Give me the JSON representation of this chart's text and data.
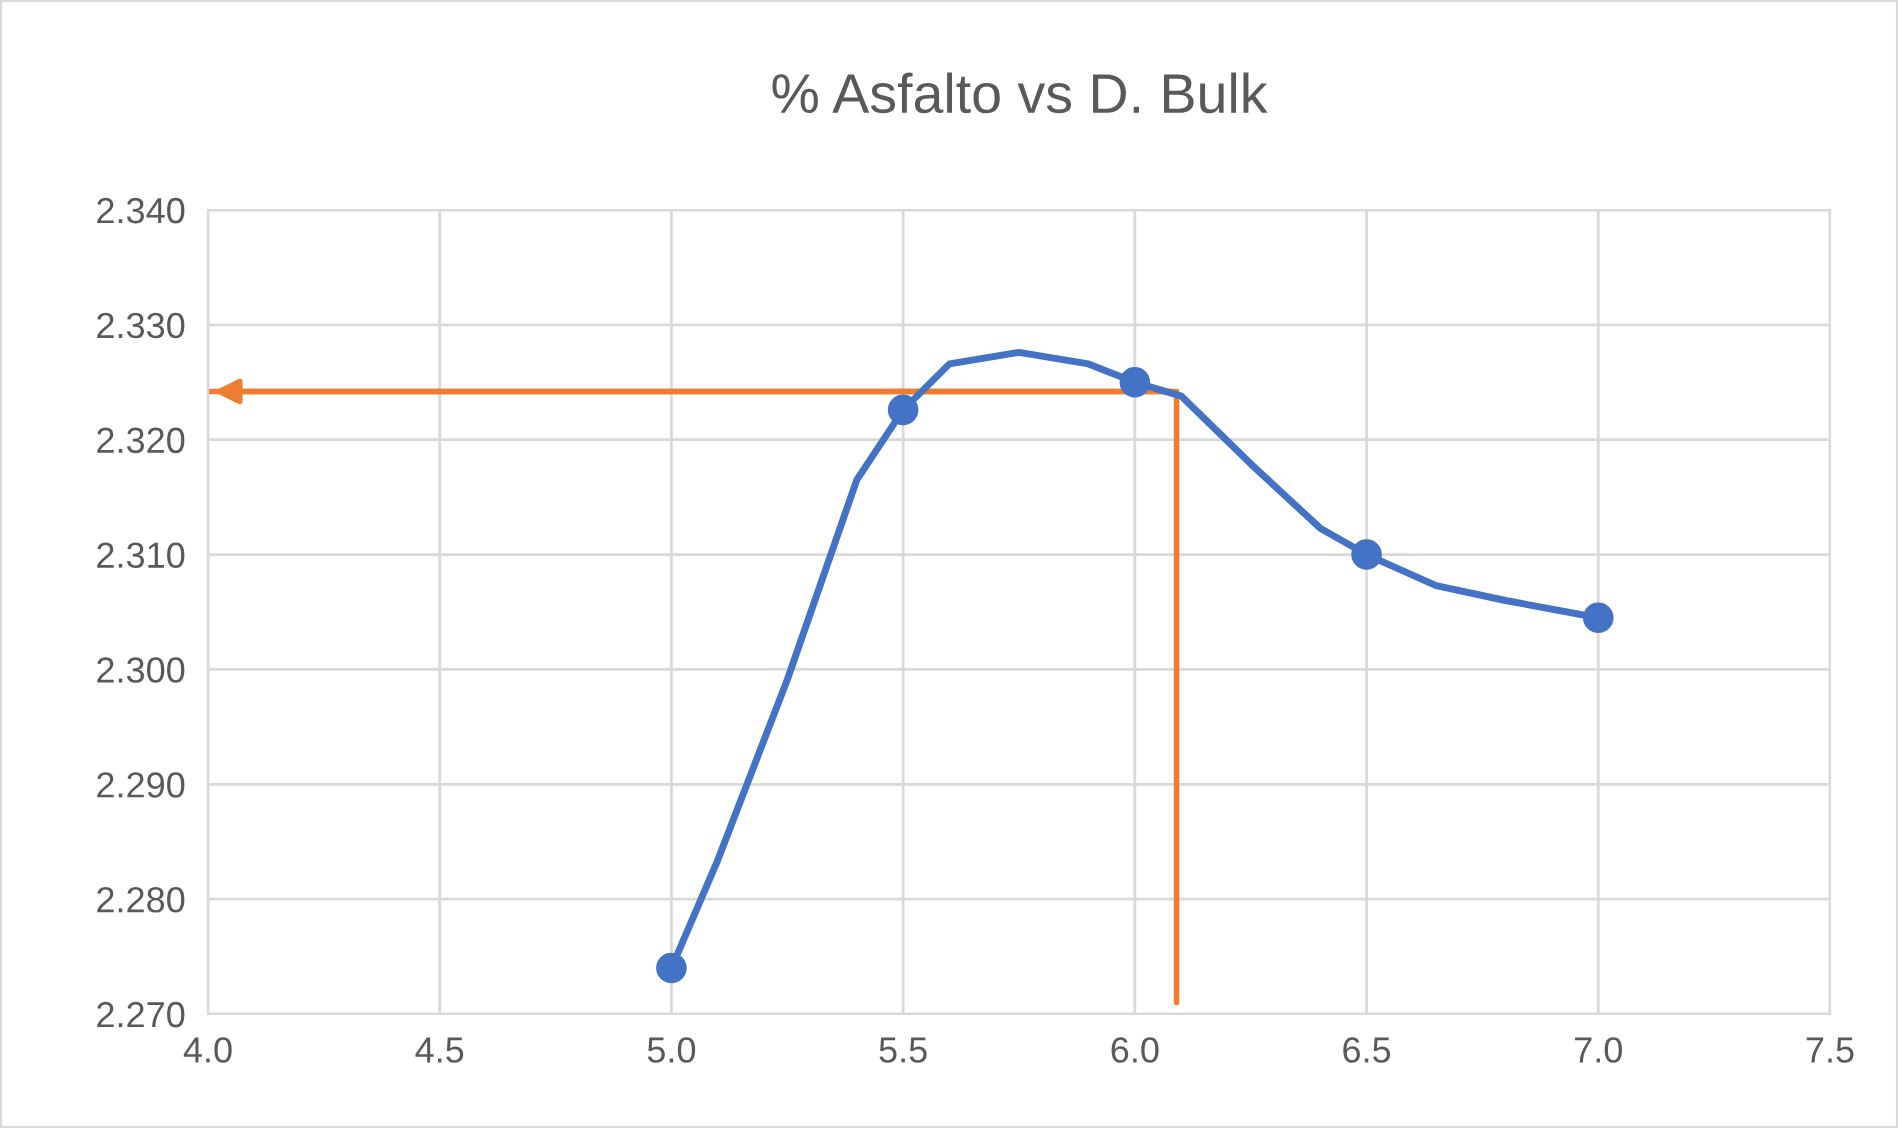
{
  "chart_data": {
    "type": "line",
    "title": "% Asfalto vs D. Bulk",
    "x": [
      5.0,
      5.1,
      5.25,
      5.4,
      5.5,
      5.6,
      5.75,
      5.9,
      6.0,
      6.1,
      6.25,
      6.4,
      6.5,
      6.65,
      6.8,
      7.0
    ],
    "series": [
      {
        "color": "#4472c4",
        "values": [
          2.274,
          2.2834,
          2.2991,
          2.3165,
          2.3226,
          2.3266,
          2.3276,
          2.3266,
          2.325,
          2.3238,
          2.3179,
          2.3123,
          2.31,
          2.3073,
          2.306,
          2.3045
        ],
        "marker": "none"
      },
      {
        "type": "scatter",
        "color": "#4472c4",
        "x": [
          5.0,
          5.5,
          6.0,
          6.5,
          7.0
        ],
        "values": [
          2.274,
          2.3226,
          2.325,
          2.31,
          2.3045
        ],
        "marker": "circle"
      },
      {
        "color": "#ed7d31",
        "x": [
          6.09,
          6.09,
          4.0
        ],
        "values": [
          2.271,
          2.3242,
          2.3242
        ],
        "marker": "none"
      }
    ],
    "xlim": [
      4.0,
      7.5
    ],
    "xticks": [
      {
        "value": 4.0,
        "label": "4.0"
      },
      {
        "value": 4.5,
        "label": "4.5"
      },
      {
        "value": 5.0,
        "label": "5.0"
      },
      {
        "value": 5.5,
        "label": "5.5"
      },
      {
        "value": 6.0,
        "label": "6.0"
      },
      {
        "value": 6.5,
        "label": "6.5"
      },
      {
        "value": 7.0,
        "label": "7.0"
      },
      {
        "value": 7.5,
        "label": "7.5"
      }
    ],
    "ylim": [
      2.27,
      2.34
    ],
    "yticks": [
      {
        "value": 2.27,
        "label": "2.270"
      },
      {
        "value": 2.28,
        "label": "2.280"
      },
      {
        "value": 2.29,
        "label": "2.290"
      },
      {
        "value": 2.3,
        "label": "2.300"
      },
      {
        "value": 2.31,
        "label": "2.310"
      },
      {
        "value": 2.32,
        "label": "2.320"
      },
      {
        "value": 2.33,
        "label": "2.330"
      },
      {
        "value": 2.34,
        "label": "2.340"
      }
    ],
    "grid": true,
    "legend": false
  }
}
